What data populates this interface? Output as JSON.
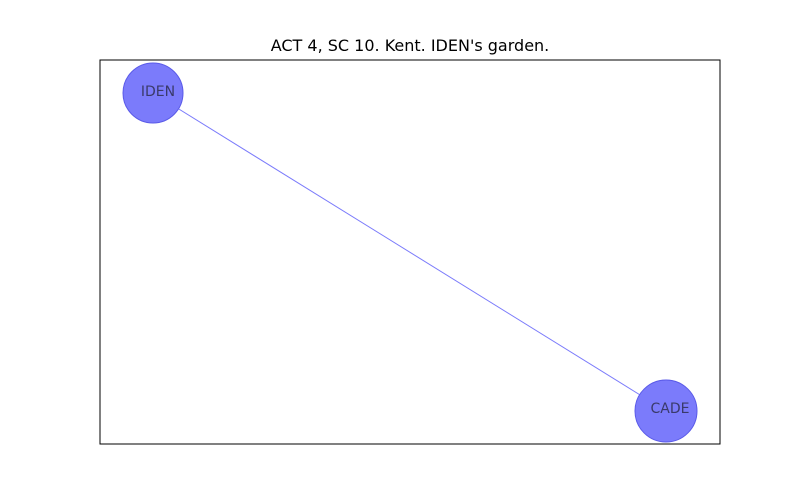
{
  "title": "ACT 4, SC 10. Kent. IDEN's garden.",
  "colors": {
    "node_fill": "#7b7bfb",
    "node_stroke": "#5a5ae8",
    "edge": "#7b7bfb",
    "label": "#3a3a6a",
    "frame": "#000000"
  },
  "nodes": [
    {
      "id": "IDEN",
      "label": "IDEN"
    },
    {
      "id": "CADE",
      "label": "CADE"
    }
  ],
  "edges": [
    {
      "source": "IDEN",
      "target": "CADE"
    }
  ]
}
